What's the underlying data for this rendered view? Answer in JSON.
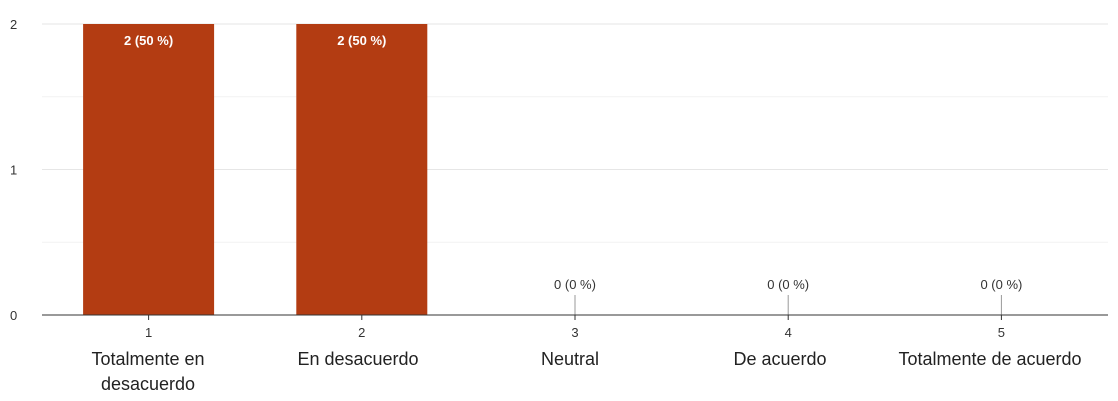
{
  "chart_data": {
    "type": "bar",
    "categories": [
      "1",
      "2",
      "3",
      "4",
      "5"
    ],
    "category_descriptions": [
      "Totalmente en desacuerdo",
      "En desacuerdo",
      "Neutral",
      "De acuerdo",
      "Totalmente de acuerdo"
    ],
    "values": [
      2,
      2,
      0,
      0,
      0
    ],
    "data_labels": [
      "2 (50 %)",
      "2 (50 %)",
      "0 (0 %)",
      "0 (0 %)",
      "0 (0 %)"
    ],
    "ylim": [
      0,
      2
    ],
    "yticks": [
      "0",
      "1",
      "2"
    ],
    "grid": true,
    "legend": "none",
    "bar_color": "#b33c12",
    "grid_color": "#f2f2f2",
    "axis_color": "#333333"
  }
}
